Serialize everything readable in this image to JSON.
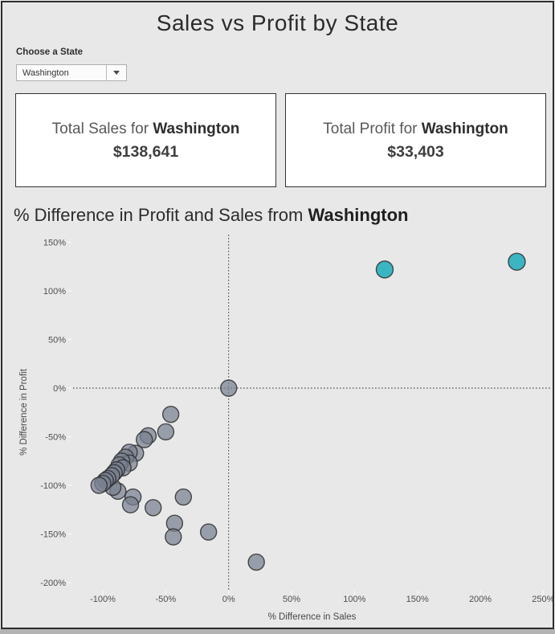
{
  "window": {
    "title": "Sales vs Profit by State"
  },
  "filter": {
    "label": "Choose a State",
    "value": "Washington",
    "icon": "caret-down-icon"
  },
  "kpi_cards": [
    {
      "prefix": "Total Sales for ",
      "state": "Washington",
      "value": "$138,641"
    },
    {
      "prefix": "Total Profit for ",
      "state": "Washington",
      "value": "$33,403"
    }
  ],
  "chart_title": {
    "prefix": "% Difference in Profit and Sales from ",
    "state": "Washington"
  },
  "colors": {
    "page_bg": "#e8e8e8",
    "frame_border": "#2d2d2d",
    "card_bg": "#ffffff",
    "point_gray": "#788190",
    "point_teal": "#3bb5c2",
    "point_stroke": "#2e2e2e",
    "tick_text": "#4e4e4e",
    "tick_mark": "#fafafa",
    "ref_line": "#2f2f2f"
  },
  "chart_data": {
    "type": "scatter",
    "title": "% Difference in Profit and Sales from Washington",
    "xlabel": "% Difference in Sales",
    "ylabel": "% Difference in Profit",
    "xlim": [
      -123,
      256
    ],
    "ylim": [
      -208,
      162
    ],
    "grid": false,
    "legend": "none",
    "x_ticks": [
      -100,
      -50,
      0,
      50,
      100,
      150,
      200,
      250
    ],
    "x_tick_labels": [
      "-100%",
      "-50%",
      "0%",
      "50%",
      "100%",
      "150%",
      "200%",
      "250%"
    ],
    "y_ticks": [
      150,
      100,
      50,
      0,
      -50,
      -100,
      -150,
      -200
    ],
    "y_tick_labels": [
      "150%",
      "100%",
      "50%",
      "0%",
      "-50%",
      "-100%",
      "-150%",
      "-200%"
    ],
    "reference_lines": {
      "x": 0,
      "y": 0,
      "style": "dotted"
    },
    "series": [
      {
        "name": "other-states",
        "color": "#788190",
        "fill_opacity": 0.72,
        "stroke": "#2e2e2e",
        "radius": 10,
        "points": [
          [
            0,
            0
          ],
          [
            22,
            -179
          ],
          [
            -16,
            -148
          ],
          [
            -43,
            -139
          ],
          [
            -44,
            -153
          ],
          [
            -36,
            -112
          ],
          [
            -60,
            -123
          ],
          [
            -76,
            -112
          ],
          [
            -78,
            -120
          ],
          [
            -88,
            -106
          ],
          [
            -92,
            -102
          ],
          [
            -46,
            -27
          ],
          [
            -50,
            -45
          ],
          [
            -64,
            -49
          ],
          [
            -67,
            -53
          ],
          [
            -74,
            -67
          ],
          [
            -79,
            -66
          ],
          [
            -82,
            -71
          ],
          [
            -79,
            -77
          ],
          [
            -85,
            -75
          ],
          [
            -87,
            -79
          ],
          [
            -84,
            -82
          ],
          [
            -89,
            -84
          ],
          [
            -91,
            -87
          ],
          [
            -93,
            -90
          ],
          [
            -96,
            -93
          ],
          [
            -98,
            -95
          ],
          [
            -100,
            -98
          ],
          [
            -103,
            -100
          ]
        ]
      },
      {
        "name": "highlighted-states",
        "color": "#3bb5c2",
        "fill_opacity": 1,
        "stroke": "#2e2e2e",
        "radius": 10.5,
        "points": [
          [
            124,
            122
          ],
          [
            229,
            130
          ]
        ]
      }
    ]
  }
}
